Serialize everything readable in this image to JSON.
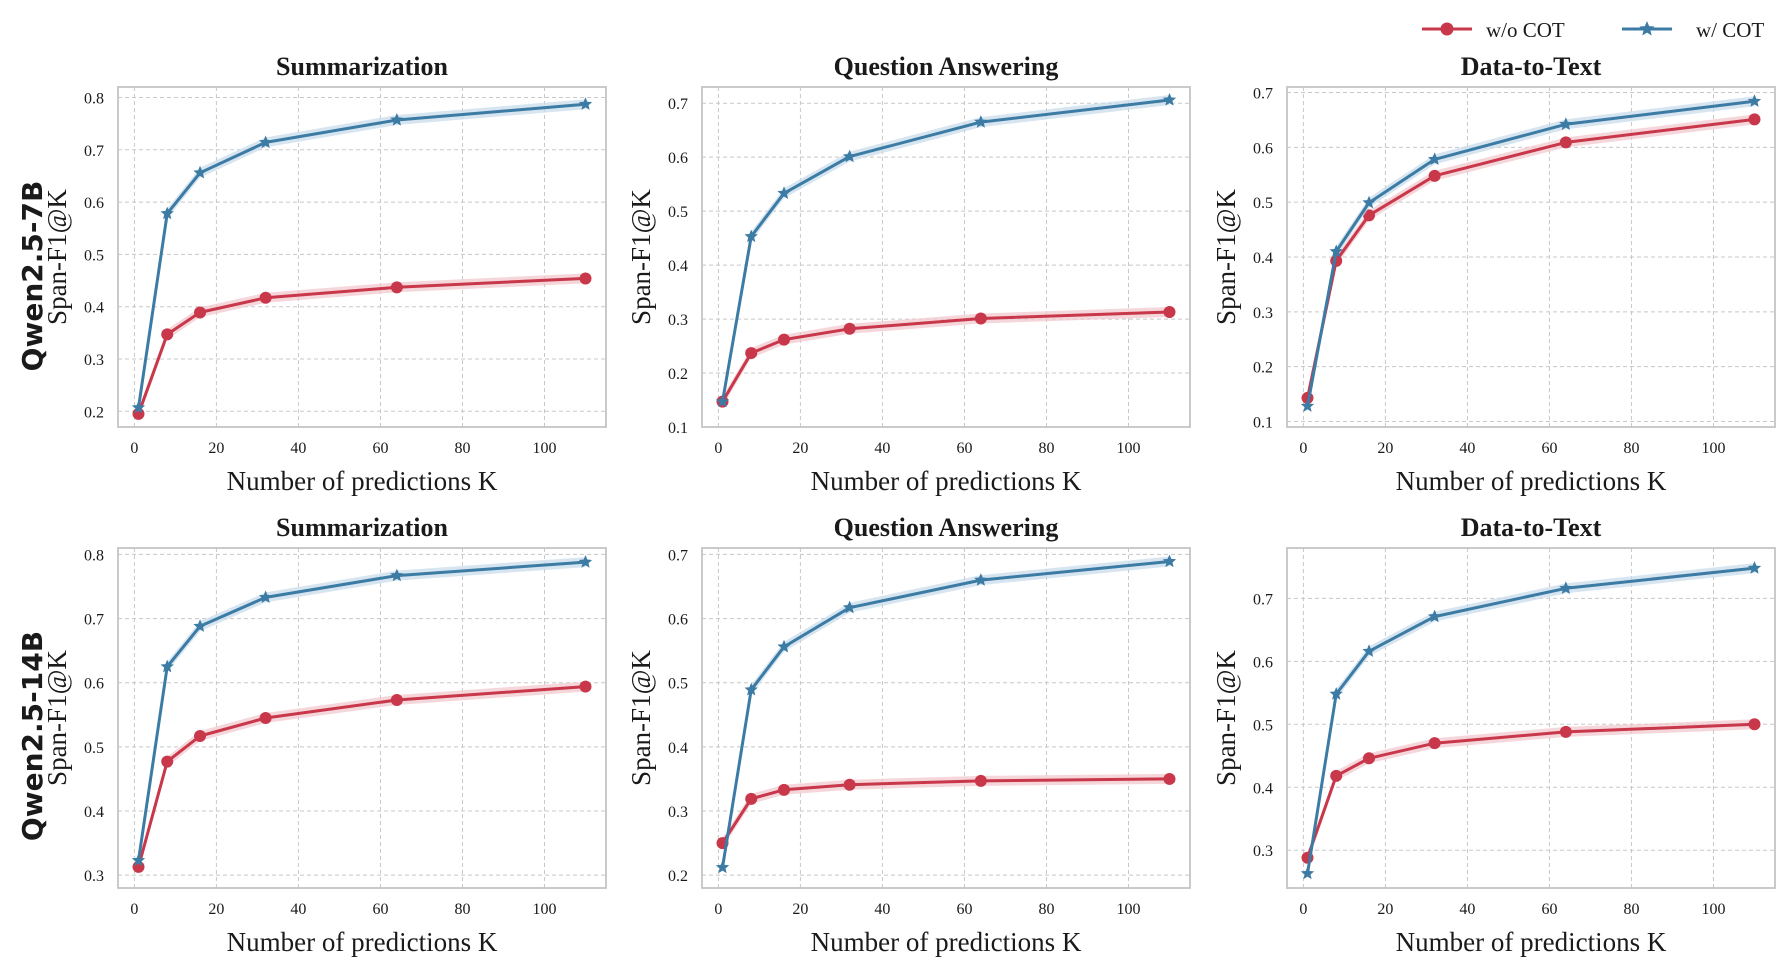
{
  "legend": {
    "entries": [
      {
        "label": "w/o COT",
        "color": "#c8374a",
        "marker": "circle"
      },
      {
        "label": "w/ COT",
        "color": "#3c7ba4",
        "marker": "star"
      }
    ]
  },
  "row_labels": [
    "Qwen2.5-7B",
    "Qwen2.5-14B"
  ],
  "chart_data": [
    {
      "type": "line",
      "model": "Qwen2.5-7B",
      "title": "Summarization",
      "xlabel": "Number of predictions K",
      "ylabel": "Span-F1@K",
      "xlim": [
        -4,
        115
      ],
      "ylim": [
        0.17,
        0.82
      ],
      "xticks": [
        0,
        20,
        40,
        60,
        80,
        100
      ],
      "yticks": [
        0.2,
        0.3,
        0.4,
        0.5,
        0.6,
        0.7,
        0.8
      ],
      "x": [
        1,
        8,
        16,
        32,
        64,
        110
      ],
      "series": [
        {
          "name": "w/o COT",
          "values": [
            0.195,
            0.347,
            0.389,
            0.417,
            0.437,
            0.454
          ]
        },
        {
          "name": "w/ COT",
          "values": [
            0.207,
            0.578,
            0.656,
            0.714,
            0.757,
            0.787
          ]
        }
      ]
    },
    {
      "type": "line",
      "model": "Qwen2.5-7B",
      "title": "Question Answering",
      "xlabel": "Number of predictions K",
      "ylabel": "Span-F1@K",
      "xlim": [
        -4,
        115
      ],
      "ylim": [
        0.1,
        0.73
      ],
      "xticks": [
        0,
        20,
        40,
        60,
        80,
        100
      ],
      "yticks": [
        0.1,
        0.2,
        0.3,
        0.4,
        0.5,
        0.6,
        0.7
      ],
      "x": [
        1,
        8,
        16,
        32,
        64,
        110
      ],
      "series": [
        {
          "name": "w/o COT",
          "values": [
            0.147,
            0.237,
            0.262,
            0.282,
            0.301,
            0.313
          ]
        },
        {
          "name": "w/ COT",
          "values": [
            0.147,
            0.453,
            0.533,
            0.601,
            0.665,
            0.706
          ]
        }
      ]
    },
    {
      "type": "line",
      "model": "Qwen2.5-7B",
      "title": "Data-to-Text",
      "xlabel": "Number of predictions K",
      "ylabel": "Span-F1@K",
      "xlim": [
        -4,
        115
      ],
      "ylim": [
        0.09,
        0.71
      ],
      "xticks": [
        0,
        20,
        40,
        60,
        80,
        100
      ],
      "yticks": [
        0.1,
        0.2,
        0.3,
        0.4,
        0.5,
        0.6,
        0.7
      ],
      "x": [
        1,
        8,
        16,
        32,
        64,
        110
      ],
      "series": [
        {
          "name": "w/o COT",
          "values": [
            0.143,
            0.393,
            0.476,
            0.548,
            0.609,
            0.651
          ]
        },
        {
          "name": "w/ COT",
          "values": [
            0.128,
            0.41,
            0.499,
            0.578,
            0.642,
            0.684
          ]
        }
      ]
    },
    {
      "type": "line",
      "model": "Qwen2.5-14B",
      "title": "Summarization",
      "xlabel": "Number of predictions K",
      "ylabel": "Span-F1@K",
      "xlim": [
        -4,
        115
      ],
      "ylim": [
        0.28,
        0.81
      ],
      "xticks": [
        0,
        20,
        40,
        60,
        80,
        100
      ],
      "yticks": [
        0.3,
        0.4,
        0.5,
        0.6,
        0.7,
        0.8
      ],
      "x": [
        1,
        8,
        16,
        32,
        64,
        110
      ],
      "series": [
        {
          "name": "w/o COT",
          "values": [
            0.313,
            0.477,
            0.517,
            0.545,
            0.573,
            0.594
          ]
        },
        {
          "name": "w/ COT",
          "values": [
            0.323,
            0.625,
            0.688,
            0.733,
            0.767,
            0.788
          ]
        }
      ]
    },
    {
      "type": "line",
      "model": "Qwen2.5-14B",
      "title": "Question Answering",
      "xlabel": "Number of predictions K",
      "ylabel": "Span-F1@K",
      "xlim": [
        -4,
        115
      ],
      "ylim": [
        0.18,
        0.71
      ],
      "xticks": [
        0,
        20,
        40,
        60,
        80,
        100
      ],
      "yticks": [
        0.2,
        0.3,
        0.4,
        0.5,
        0.6,
        0.7
      ],
      "x": [
        1,
        8,
        16,
        32,
        64,
        110
      ],
      "series": [
        {
          "name": "w/o COT",
          "values": [
            0.25,
            0.319,
            0.333,
            0.341,
            0.347,
            0.35
          ]
        },
        {
          "name": "w/ COT",
          "values": [
            0.212,
            0.489,
            0.556,
            0.617,
            0.66,
            0.689
          ]
        }
      ]
    },
    {
      "type": "line",
      "model": "Qwen2.5-14B",
      "title": "Data-to-Text",
      "xlabel": "Number of predictions K",
      "ylabel": "Span-F1@K",
      "xlim": [
        -4,
        115
      ],
      "ylim": [
        0.24,
        0.78
      ],
      "xticks": [
        0,
        20,
        40,
        60,
        80,
        100
      ],
      "yticks": [
        0.3,
        0.4,
        0.5,
        0.6,
        0.7
      ],
      "x": [
        1,
        8,
        16,
        32,
        64,
        110
      ],
      "series": [
        {
          "name": "w/o COT",
          "values": [
            0.288,
            0.418,
            0.446,
            0.47,
            0.488,
            0.5
          ]
        },
        {
          "name": "w/ COT",
          "values": [
            0.263,
            0.548,
            0.616,
            0.671,
            0.716,
            0.748
          ]
        }
      ]
    }
  ]
}
